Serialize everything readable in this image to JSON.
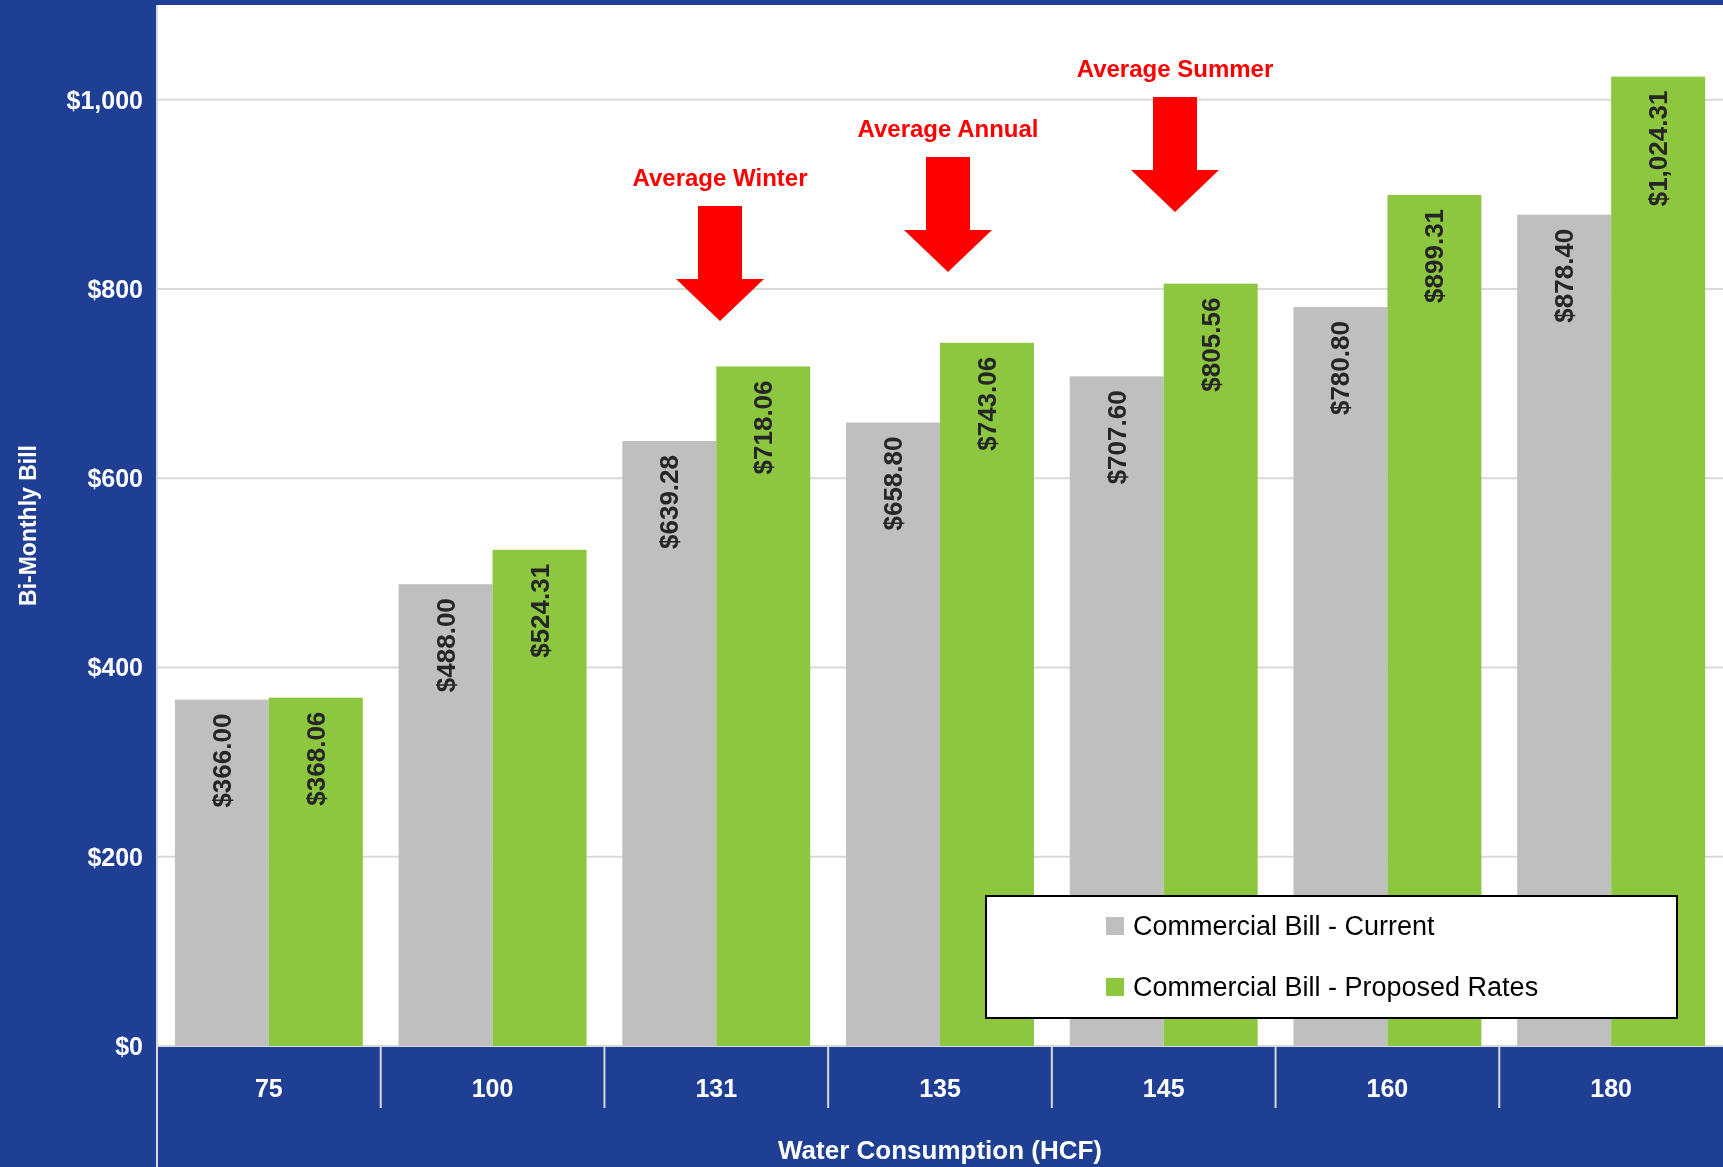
{
  "chart_data": {
    "type": "bar",
    "xlabel": "Water Consumption (HCF)",
    "ylabel": "Bi-Monthly Bill",
    "categories": [
      "75",
      "100",
      "131",
      "135",
      "145",
      "160",
      "180"
    ],
    "series": [
      {
        "name": "Commercial Bill - Current",
        "color": "#bfbfbf",
        "values": [
          366.0,
          488.0,
          639.28,
          658.8,
          707.6,
          780.8,
          878.4
        ],
        "value_labels": [
          "$366.00",
          "$488.00",
          "$639.28",
          "$658.80",
          "$707.60",
          "$780.80",
          "$878.40"
        ]
      },
      {
        "name": "Commercial Bill - Proposed Rates",
        "color": "#8dc63f",
        "values": [
          368.06,
          524.31,
          718.06,
          743.06,
          805.56,
          899.31,
          1024.31
        ],
        "value_labels": [
          "$368.06",
          "$524.31",
          "$718.06",
          "$743.06",
          "$805.56",
          "$899.31",
          "$1,024.31"
        ]
      }
    ],
    "ylim": [
      0,
      1100
    ],
    "yticks": [
      {
        "value": 0,
        "label": "$0"
      },
      {
        "value": 200,
        "label": "$200"
      },
      {
        "value": 400,
        "label": "$400"
      },
      {
        "value": 600,
        "label": "$600"
      },
      {
        "value": 800,
        "label": "$800"
      },
      {
        "value": 1000,
        "label": "$1,000"
      }
    ],
    "grid": "y",
    "legend": "bottom right",
    "annotations": [
      "Average Winter",
      "Average Annual",
      "Average Summer"
    ]
  }
}
